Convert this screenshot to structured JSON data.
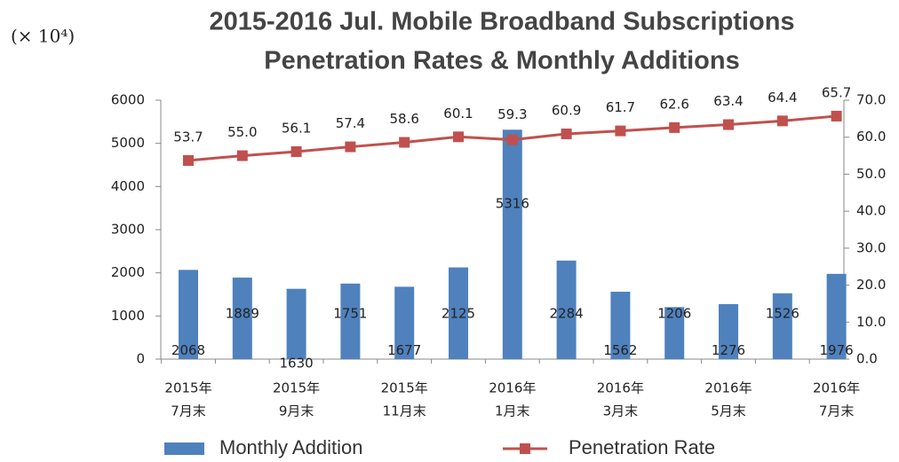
{
  "chart_data": {
    "type": "bar-line",
    "title": [
      "2015-2016 Jul. Mobile Broadband Subscriptions",
      "Penetration Rates & Monthly Additions"
    ],
    "y_label": "(× 10⁴)",
    "categories": [
      [
        "2015年",
        "7月末"
      ],
      null,
      [
        "2015年",
        "9月末"
      ],
      null,
      [
        "2015年",
        "11月末"
      ],
      null,
      [
        "2016年",
        "1月末"
      ],
      null,
      [
        "2016年",
        "3月末"
      ],
      null,
      [
        "2016年",
        "5月末"
      ],
      null,
      [
        "2016年",
        "7月末"
      ]
    ],
    "series": [
      {
        "name": "Monthly Addition",
        "color": "#4f81bd",
        "type": "bar",
        "values": [
          2068,
          1889,
          1630,
          1751,
          1677,
          2125,
          5316,
          2284,
          1562,
          1206,
          1276,
          1526,
          1976
        ]
      },
      {
        "name": "Penetration Rate",
        "color": "#c0504d",
        "type": "line",
        "axis": "y2",
        "values": [
          53.7,
          55,
          56.1,
          57.4,
          58.6,
          60.1,
          59.3,
          60.9,
          61.7,
          62.6,
          63.4,
          64.4,
          65.7
        ],
        "value_labels": [
          "53.7",
          "55.0",
          "56.1",
          "57.4",
          "58.6",
          "60.1",
          "59.3",
          "60.9",
          "61.7",
          "62.6",
          "63.4",
          "64.4",
          "65.7"
        ]
      }
    ],
    "ylim": [
      0,
      6000
    ],
    "yticks": [
      0,
      1000,
      2000,
      3000,
      4000,
      5000,
      6000
    ],
    "y2lim": [
      0,
      70
    ],
    "y2ticks": [
      {
        "value": 0,
        "label": "0.0"
      },
      {
        "value": 10,
        "label": "10.0"
      },
      {
        "value": 20,
        "label": "20.0"
      },
      {
        "value": 30,
        "label": "30.0"
      },
      {
        "value": 40,
        "label": "40.0"
      },
      {
        "value": 50,
        "label": "50.0"
      },
      {
        "value": 60,
        "label": "60.0"
      },
      {
        "value": 70,
        "label": "70.0"
      }
    ],
    "legend": "bottom"
  }
}
